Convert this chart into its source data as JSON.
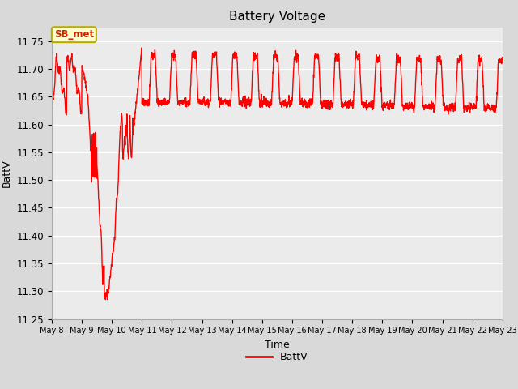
{
  "title": "Battery Voltage",
  "xlabel": "Time",
  "ylabel": "BattV",
  "legend_label": "BattV",
  "line_color": "#ff0000",
  "background_color": "#d9d9d9",
  "plot_bg_color": "#ebebeb",
  "ylim": [
    11.25,
    11.775
  ],
  "yticks": [
    11.25,
    11.3,
    11.35,
    11.4,
    11.45,
    11.5,
    11.55,
    11.6,
    11.65,
    11.7,
    11.75
  ],
  "xtick_labels": [
    "May 8",
    "May 9",
    "May 10",
    "May 11",
    "May 12",
    "May 13",
    "May 14",
    "May 15",
    "May 16",
    "May 17",
    "May 18",
    "May 19",
    "May 20",
    "May 21",
    "May 22",
    "May 23"
  ],
  "sb_met_box_color": "#ffffcc",
  "sb_met_border_color": "#bbaa00",
  "sb_met_text_color": "#cc2200",
  "line_width": 1.0
}
